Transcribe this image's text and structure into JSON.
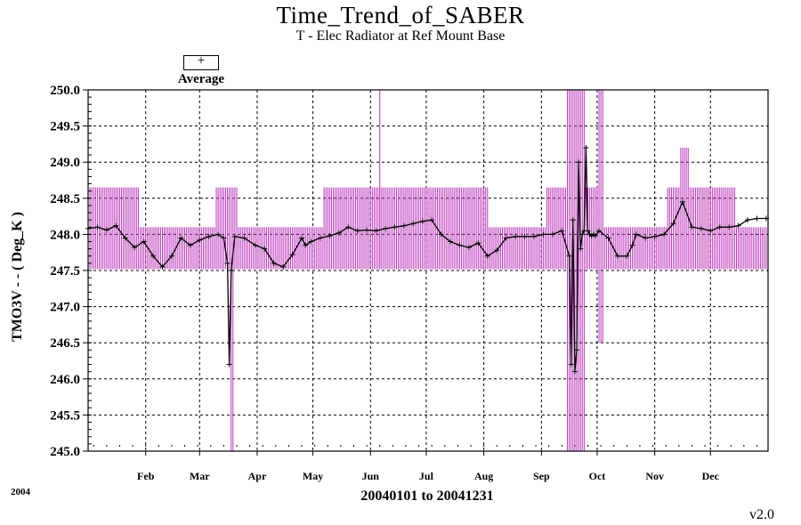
{
  "chart_data": {
    "type": "line",
    "title": "Time_Trend_of_SABER",
    "subtitle": "T - Elec Radiator at Ref Mount Base",
    "ylabel": "TMO3V  - - ( Deg_K )",
    "xlabel": "20040101 to 20041231",
    "year_label": "2004",
    "version": "v2.0",
    "ylim": [
      245.0,
      250.0
    ],
    "xlim": [
      1,
      367
    ],
    "y_ticks": [
      "245.0",
      "245.5",
      "246.0",
      "246.5",
      "247.0",
      "247.5",
      "248.0",
      "248.5",
      "249.0",
      "249.5",
      "250.0"
    ],
    "x_ticks": [
      {
        "label": "Feb",
        "day": 32
      },
      {
        "label": "Mar",
        "day": 61
      },
      {
        "label": "Apr",
        "day": 92
      },
      {
        "label": "May",
        "day": 122
      },
      {
        "label": "Jun",
        "day": 153
      },
      {
        "label": "Jul",
        "day": 183
      },
      {
        "label": "Aug",
        "day": 214
      },
      {
        "label": "Sep",
        "day": 245
      },
      {
        "label": "Oct",
        "day": 275
      },
      {
        "label": "Nov",
        "day": 306
      },
      {
        "label": "Dec",
        "day": 336
      }
    ],
    "grid": true,
    "legend": {
      "position": "top-left",
      "entries": [
        {
          "symbol": "+",
          "label": "Average"
        }
      ]
    },
    "series": [
      {
        "name": "Average",
        "color": "#000000",
        "x": [
          1,
          6,
          11,
          16,
          21,
          26,
          31,
          36,
          41,
          46,
          51,
          56,
          61,
          66,
          71,
          74,
          76,
          77,
          78,
          80,
          85,
          91,
          96,
          101,
          106,
          111,
          116,
          118,
          121,
          126,
          131,
          136,
          141,
          146,
          151,
          156,
          161,
          166,
          171,
          176,
          181,
          186,
          191,
          196,
          201,
          206,
          211,
          216,
          221,
          226,
          231,
          236,
          241,
          246,
          251,
          256,
          260,
          261,
          262,
          263,
          264,
          265,
          266,
          267,
          268,
          269,
          270,
          271,
          272,
          273,
          274,
          276,
          281,
          286,
          291,
          294,
          296,
          301,
          306,
          311,
          316,
          321,
          326,
          331,
          336,
          341,
          346,
          351,
          356,
          361,
          366
        ],
        "y": [
          248.08,
          248.1,
          248.06,
          248.12,
          247.95,
          247.82,
          247.9,
          247.7,
          247.55,
          247.7,
          247.95,
          247.85,
          247.92,
          247.97,
          248.0,
          247.95,
          247.6,
          246.2,
          247.5,
          247.97,
          247.95,
          247.85,
          247.8,
          247.6,
          247.55,
          247.72,
          247.95,
          247.85,
          247.9,
          247.95,
          247.98,
          248.02,
          248.1,
          248.05,
          248.06,
          248.05,
          248.08,
          248.1,
          248.12,
          248.15,
          248.18,
          248.2,
          248.0,
          247.9,
          247.85,
          247.82,
          247.88,
          247.7,
          247.78,
          247.95,
          247.97,
          247.97,
          247.97,
          248.0,
          248.0,
          248.05,
          247.7,
          246.2,
          248.2,
          246.1,
          246.4,
          249.0,
          247.8,
          248.0,
          248.05,
          249.2,
          248.05,
          248.0,
          247.98,
          248.0,
          247.98,
          248.05,
          247.95,
          247.7,
          247.7,
          247.85,
          248.0,
          247.95,
          247.97,
          248.0,
          248.15,
          248.45,
          248.1,
          248.08,
          248.05,
          248.1,
          248.1,
          248.12,
          248.2,
          248.22,
          248.22
        ]
      },
      {
        "name": "",
        "color": "#bb33bb",
        "style": "min-max",
        "segments": [
          {
            "from": 1,
            "to": 28,
            "min": 247.52,
            "max": 248.65
          },
          {
            "from": 29,
            "to": 69,
            "min": 247.52,
            "max": 248.1
          },
          {
            "from": 70,
            "to": 77,
            "min": 247.52,
            "max": 248.65
          },
          {
            "from": 78,
            "to": 79,
            "min": 245.0,
            "max": 248.65
          },
          {
            "from": 80,
            "to": 81,
            "min": 247.52,
            "max": 248.65
          },
          {
            "from": 82,
            "to": 127,
            "min": 247.52,
            "max": 248.1
          },
          {
            "from": 128,
            "to": 216,
            "min": 247.52,
            "max": 248.65
          },
          {
            "from": 158,
            "to": 158,
            "min": 247.52,
            "max": 250.0
          },
          {
            "from": 217,
            "to": 247,
            "min": 247.52,
            "max": 248.1
          },
          {
            "from": 248,
            "to": 258,
            "min": 247.52,
            "max": 248.65
          },
          {
            "from": 259,
            "to": 268,
            "min": 245.0,
            "max": 250.0
          },
          {
            "from": 269,
            "to": 275,
            "min": 247.52,
            "max": 248.65
          },
          {
            "from": 276,
            "to": 278,
            "min": 246.5,
            "max": 250.0
          },
          {
            "from": 279,
            "to": 312,
            "min": 247.52,
            "max": 248.1
          },
          {
            "from": 313,
            "to": 319,
            "min": 247.52,
            "max": 248.65
          },
          {
            "from": 320,
            "to": 324,
            "min": 247.52,
            "max": 249.2
          },
          {
            "from": 325,
            "to": 349,
            "min": 247.52,
            "max": 248.65
          },
          {
            "from": 350,
            "to": 366,
            "min": 247.52,
            "max": 248.1
          }
        ]
      }
    ]
  }
}
